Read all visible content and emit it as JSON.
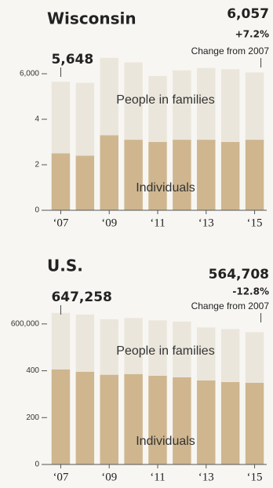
{
  "chart_data": [
    {
      "type": "stacked-bar",
      "title": "Wisconsin",
      "categories": [
        "‘07",
        null,
        "‘09",
        null,
        "‘11",
        null,
        "‘13",
        null,
        "‘15"
      ],
      "series": [
        {
          "name": "Individuals",
          "color": "#cfb68f",
          "values": [
            2500,
            2400,
            3300,
            3100,
            3000,
            3100,
            3100,
            3000,
            3100
          ]
        },
        {
          "name": "People in families",
          "color": "#ebe6dc",
          "values": [
            3148,
            3200,
            3400,
            3400,
            2900,
            3050,
            3150,
            3200,
            2957
          ]
        }
      ],
      "ylim": [
        0,
        7000
      ],
      "yticks": [
        0,
        {
          "value": 2000,
          "label": "2"
        },
        {
          "value": 4000,
          "label": "4"
        },
        {
          "value": 6000,
          "label": "6,000"
        }
      ],
      "grid": false,
      "annotations": {
        "start": "5,648",
        "end": "6,057",
        "change": "+7.2%",
        "change_label": "Change from 2007"
      }
    },
    {
      "type": "stacked-bar",
      "title": "U.S.",
      "categories": [
        "‘07",
        null,
        "‘09",
        null,
        "‘11",
        null,
        "‘13",
        null,
        "‘15"
      ],
      "series": [
        {
          "name": "Individuals",
          "color": "#cfb68f",
          "values": [
            406000,
            396000,
            383000,
            386000,
            379000,
            372000,
            359000,
            352000,
            349000
          ]
        },
        {
          "name": "People in families",
          "color": "#ebe6dc",
          "values": [
            241258,
            244000,
            237000,
            239000,
            236000,
            238000,
            226000,
            226000,
            215708
          ]
        }
      ],
      "ylim": [
        0,
        700000
      ],
      "yticks": [
        0,
        {
          "value": 200000,
          "label": "200"
        },
        {
          "value": 400000,
          "label": "400"
        },
        {
          "value": 600000,
          "label": "600,000"
        }
      ],
      "grid": false,
      "annotations": {
        "start": "647,258",
        "end": "564,708",
        "change": "-12.8%",
        "change_label": "Change from 2007"
      }
    }
  ]
}
